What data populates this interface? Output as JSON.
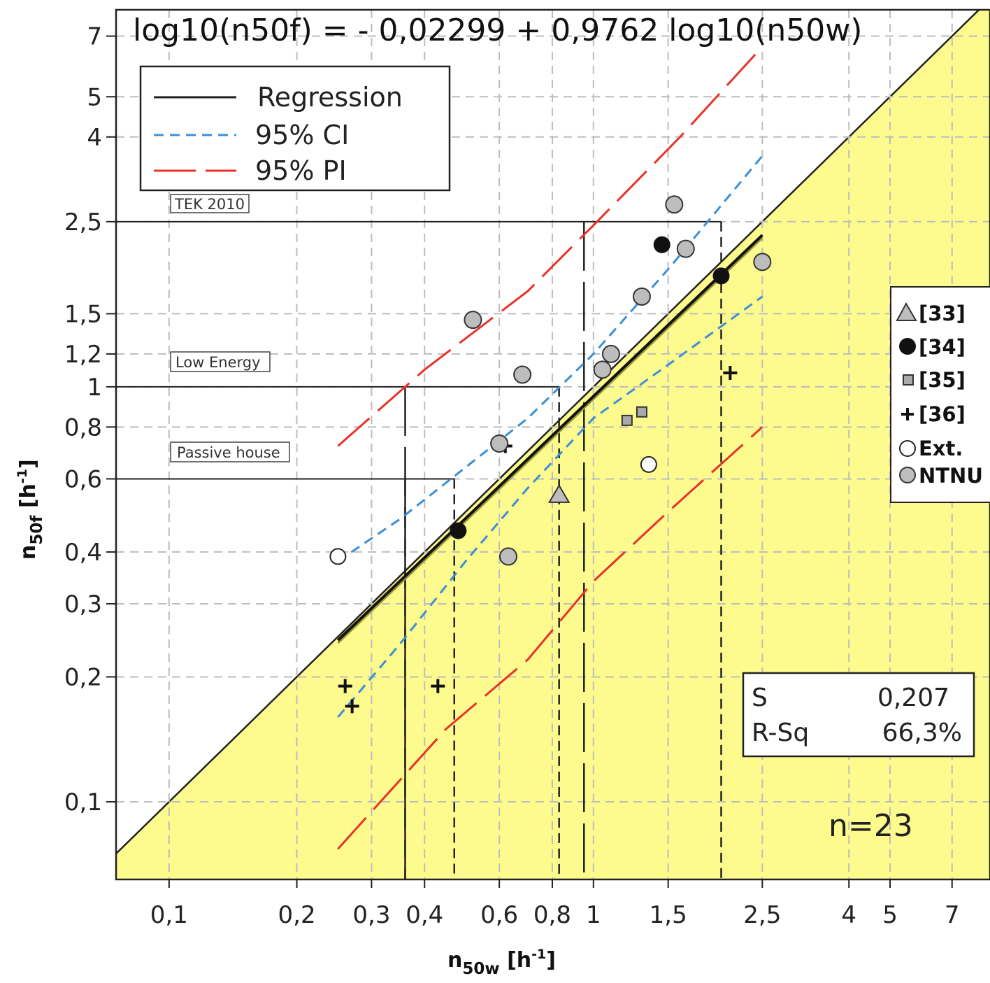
{
  "chart_data": {
    "type": "scatter",
    "xlabel_main": "n",
    "xlabel_sub": "50w",
    "xlabel_unit": "[h",
    "xlabel_unit_sup": "-1",
    "xlabel_unit_close": "]",
    "ylabel_main": "n",
    "ylabel_sub": "50f",
    "ylabel_unit": "[h",
    "ylabel_unit_sup": "-1",
    "ylabel_unit_close": "]",
    "x_scale": "log",
    "y_scale": "log",
    "xlim": [
      0.075,
      8.6
    ],
    "ylim": [
      0.065,
      8.1
    ],
    "grid": true,
    "x_ticks": [
      0.1,
      0.2,
      0.3,
      0.4,
      0.6,
      0.8,
      1,
      1.5,
      2.5,
      4,
      5,
      7
    ],
    "x_tick_labels": [
      "0,1",
      "0,2",
      "0,3",
      "0,4",
      "0,6",
      "0,8",
      "1",
      "1,5",
      "2,5",
      "4",
      "5",
      "7"
    ],
    "y_ticks": [
      0.1,
      0.2,
      0.3,
      0.4,
      0.6,
      0.8,
      1,
      1.2,
      1.5,
      2.5,
      4,
      5,
      7
    ],
    "y_tick_labels": [
      "0,1",
      "0,2",
      "0,3",
      "0,4",
      "0,6",
      "0,8",
      "1",
      "1,2",
      "1,5",
      "2,5",
      "4",
      "5",
      "7"
    ],
    "equation": "log10(n50f) = - 0,02299 + 0,9762 log10(n50w)",
    "regression": {
      "intercept": -0.02299,
      "slope": 0.9762,
      "x_range": [
        0.25,
        2.5
      ]
    },
    "bands": [
      {
        "name": "95% CI",
        "color": "#3a8fd6",
        "upper": [
          [
            0.25,
            0.38
          ],
          [
            0.35,
            0.48
          ],
          [
            0.5,
            0.64
          ],
          [
            0.7,
            0.84
          ],
          [
            1.0,
            1.2
          ],
          [
            1.5,
            1.92
          ],
          [
            2.5,
            3.6
          ]
        ],
        "lower": [
          [
            0.25,
            0.16
          ],
          [
            0.35,
            0.24
          ],
          [
            0.5,
            0.38
          ],
          [
            0.7,
            0.57
          ],
          [
            1.0,
            0.84
          ],
          [
            1.5,
            1.13
          ],
          [
            2.5,
            1.65
          ]
        ]
      },
      {
        "name": "95% PI",
        "color": "#e8332a",
        "upper": [
          [
            0.25,
            0.72
          ],
          [
            0.4,
            1.1
          ],
          [
            0.7,
            1.7
          ],
          [
            1.0,
            2.45
          ],
          [
            1.6,
            4.0
          ],
          [
            2.5,
            6.6
          ]
        ],
        "lower": [
          [
            0.25,
            0.077
          ],
          [
            0.45,
            0.15
          ],
          [
            0.7,
            0.22
          ],
          [
            1.0,
            0.34
          ],
          [
            1.5,
            0.5
          ],
          [
            2.5,
            0.8
          ]
        ]
      }
    ],
    "reference_lines": [
      {
        "label": "TEK 2010",
        "y": 2.5,
        "x": 0.95,
        "x_reg": 2.0
      },
      {
        "label": "Low Energy",
        "y": 1.0,
        "x": 0.36,
        "x_reg": 0.83
      },
      {
        "label": "Passive house",
        "y": 0.6,
        "x": 0.36,
        "x_reg": 0.47
      }
    ],
    "series": [
      {
        "name": "[33]",
        "marker": "triangle",
        "points": [
          [
            0.83,
            0.55
          ]
        ]
      },
      {
        "name": "[34]",
        "marker": "filled-circle",
        "points": [
          [
            0.48,
            0.45
          ],
          [
            1.45,
            2.2
          ],
          [
            2.0,
            1.85
          ]
        ]
      },
      {
        "name": "[35]",
        "marker": "square",
        "points": [
          [
            1.2,
            0.83
          ],
          [
            1.3,
            0.87
          ]
        ]
      },
      {
        "name": "[36]",
        "marker": "plus",
        "points": [
          [
            0.26,
            0.19
          ],
          [
            0.27,
            0.17
          ],
          [
            0.43,
            0.19
          ],
          [
            0.62,
            0.72
          ],
          [
            2.1,
            1.08
          ]
        ]
      },
      {
        "name": "Ext.",
        "marker": "open-circle",
        "points": [
          [
            0.25,
            0.39
          ],
          [
            1.35,
            0.65
          ]
        ]
      },
      {
        "name": "NTNU",
        "marker": "grey-circle",
        "points": [
          [
            0.52,
            1.45
          ],
          [
            0.6,
            0.73
          ],
          [
            0.63,
            0.39
          ],
          [
            0.68,
            1.07
          ],
          [
            1.05,
            1.1
          ],
          [
            1.1,
            1.2
          ],
          [
            1.3,
            1.65
          ],
          [
            1.55,
            2.75
          ],
          [
            1.65,
            2.15
          ],
          [
            2.5,
            2.0
          ]
        ]
      }
    ],
    "legend_lines": [
      {
        "name": "Regression",
        "color": "#222222",
        "dash": "solid"
      },
      {
        "name": "95% CI",
        "color": "#3a8fd6",
        "dash": "dashed"
      },
      {
        "name": "95% PI",
        "color": "#e8332a",
        "dash": "long-dash"
      }
    ],
    "stats": [
      {
        "label": "S",
        "value": "0,207"
      },
      {
        "label": "R-Sq",
        "value": "66,3%"
      }
    ],
    "n_label": "n=23",
    "colors": {
      "fill_below_identity": "#fdfa8e",
      "grid": "#bdbdbd",
      "ci": "#3a8fd6",
      "pi": "#e8332a"
    }
  }
}
